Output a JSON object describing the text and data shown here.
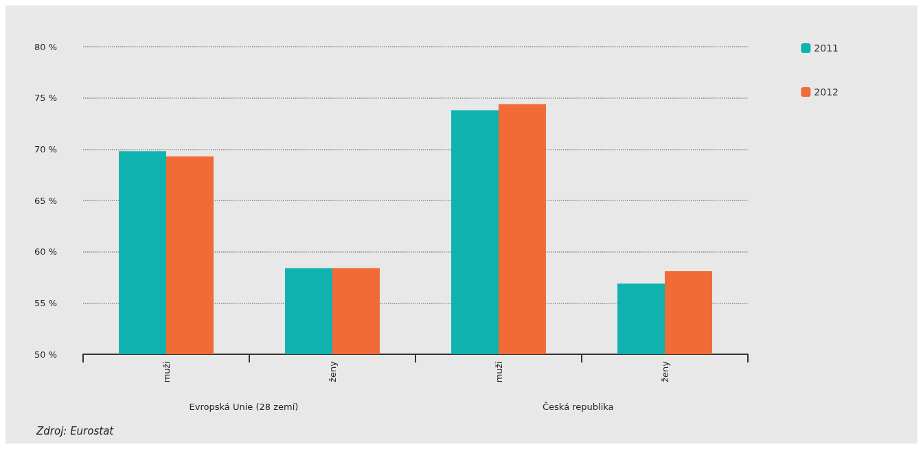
{
  "chart_data": {
    "type": "bar",
    "categories": [
      "muži",
      "ženy",
      "muži",
      "ženy"
    ],
    "series": [
      {
        "name": "2011",
        "color": "#10b2b0",
        "values": [
          69.8,
          58.4,
          73.8,
          56.9
        ]
      },
      {
        "name": "2012",
        "color": "#f26a35",
        "values": [
          69.3,
          58.4,
          74.4,
          58.1
        ]
      }
    ],
    "ylim": [
      50,
      80
    ],
    "yticks": [
      {
        "value": 50,
        "label": "50 %"
      },
      {
        "value": 55,
        "label": "55 %"
      },
      {
        "value": 60,
        "label": "60 %"
      },
      {
        "value": 65,
        "label": "65 %"
      },
      {
        "value": 70,
        "label": "70 %"
      },
      {
        "value": 75,
        "label": "75 %"
      },
      {
        "value": 80,
        "label": "80 %"
      }
    ],
    "grid": "y",
    "legend": "top right",
    "annotations": [
      "Evropská Unie (28 zemí)",
      "Česká republika",
      "Zdroj: Eurostat"
    ]
  }
}
